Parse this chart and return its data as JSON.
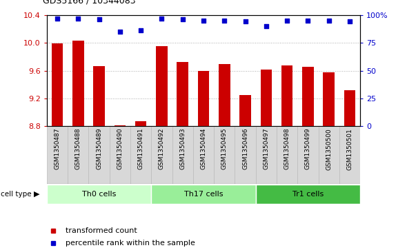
{
  "title": "GDS5166 / 10344083",
  "samples": [
    "GSM1350487",
    "GSM1350488",
    "GSM1350489",
    "GSM1350490",
    "GSM1350491",
    "GSM1350492",
    "GSM1350493",
    "GSM1350494",
    "GSM1350495",
    "GSM1350496",
    "GSM1350497",
    "GSM1350498",
    "GSM1350499",
    "GSM1350500",
    "GSM1350501"
  ],
  "transformed_count": [
    9.99,
    10.03,
    9.66,
    8.81,
    8.87,
    9.95,
    9.72,
    9.6,
    9.69,
    9.25,
    9.62,
    9.67,
    9.65,
    9.58,
    9.32
  ],
  "percentile_rank": [
    97,
    97,
    96,
    85,
    86,
    97,
    96,
    95,
    95,
    94,
    90,
    95,
    95,
    95,
    94
  ],
  "bar_color": "#cc0000",
  "dot_color": "#0000cc",
  "ylim_left": [
    8.8,
    10.4
  ],
  "ylim_right": [
    0,
    100
  ],
  "yticks_left": [
    8.8,
    9.2,
    9.6,
    10.0,
    10.4
  ],
  "yticks_right": [
    0,
    25,
    50,
    75,
    100
  ],
  "ytick_labels_right": [
    "0",
    "25",
    "50",
    "75",
    "100%"
  ],
  "groups": [
    {
      "label": "Th0 cells",
      "start": 0,
      "end": 5,
      "color": "#ccffcc"
    },
    {
      "label": "Th17 cells",
      "start": 5,
      "end": 10,
      "color": "#99ee99"
    },
    {
      "label": "Tr1 cells",
      "start": 10,
      "end": 15,
      "color": "#44bb44"
    }
  ],
  "cell_type_label": "cell type",
  "legend_items": [
    {
      "label": "transformed count",
      "color": "#cc0000"
    },
    {
      "label": "percentile rank within the sample",
      "color": "#0000cc"
    }
  ],
  "grid_color": "#aaaaaa",
  "bar_bottom": 8.8,
  "label_bg_color": "#d8d8d8",
  "label_border_color": "#bbbbbb"
}
